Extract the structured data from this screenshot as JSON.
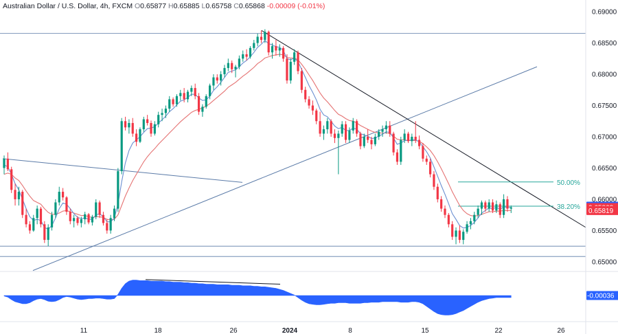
{
  "header": {
    "symbol": "Australian Dollar / U.S. Dollar, 4h, FXCM",
    "open_label": "O",
    "open": "0.65877",
    "high_label": "H",
    "high": "0.65885",
    "low_label": "L",
    "low": "0.65758",
    "close_label": "C",
    "close": "0.65868",
    "change": "-0.00009 (-0.01%)"
  },
  "price_badges": {
    "fib_38": {
      "text": "0.65889",
      "color": "#2962ff"
    },
    "close": {
      "text": "0.65868",
      "color": "#f23645"
    },
    "ma": {
      "text": "0.65819",
      "color": "#f23645"
    }
  },
  "oscillator_badge": {
    "text": "-0.00036",
    "color": "#2962ff"
  },
  "fib_labels": {
    "level_50": "50.00%",
    "level_382": "38.20%"
  },
  "colors": {
    "up_candle": "#089981",
    "down_candle": "#f23645",
    "ma_fast": "#6a8fd1",
    "ma_slow": "#e57373",
    "trendline": "#5b7ba8",
    "resistance_line": "#131722",
    "fib": "#26a69a",
    "oscillator": "#2962ff"
  },
  "chart_data": {
    "type": "candlestick",
    "title": "Australian Dollar / U.S. Dollar, 4h, FXCM",
    "ylim": [
      0.649,
      0.691
    ],
    "y_ticks": [
      "0.69000",
      "0.68500",
      "0.68000",
      "0.67500",
      "0.67000",
      "0.66500",
      "0.66000",
      "0.65500",
      "0.65000"
    ],
    "x_ticks": [
      "11",
      "18",
      "26",
      "2024",
      "8",
      "15",
      "22",
      "26"
    ],
    "bold_x_tick": "2024",
    "candles": [
      [
        0.665,
        0.667,
        0.664,
        0.6665
      ],
      [
        0.6665,
        0.6675,
        0.6645,
        0.6648
      ],
      [
        0.6648,
        0.6652,
        0.661,
        0.6615
      ],
      [
        0.6615,
        0.6625,
        0.659,
        0.66
      ],
      [
        0.66,
        0.662,
        0.659,
        0.6612
      ],
      [
        0.6612,
        0.6615,
        0.657,
        0.6575
      ],
      [
        0.6575,
        0.6585,
        0.6555,
        0.656
      ],
      [
        0.656,
        0.6565,
        0.6545,
        0.655
      ],
      [
        0.655,
        0.6575,
        0.6548,
        0.657
      ],
      [
        0.657,
        0.659,
        0.656,
        0.6585
      ],
      [
        0.6585,
        0.6588,
        0.6555,
        0.656
      ],
      [
        0.656,
        0.6565,
        0.653,
        0.6535
      ],
      [
        0.6535,
        0.656,
        0.6525,
        0.6555
      ],
      [
        0.6555,
        0.658,
        0.655,
        0.6575
      ],
      [
        0.6575,
        0.66,
        0.657,
        0.6595
      ],
      [
        0.6595,
        0.662,
        0.659,
        0.6612
      ],
      [
        0.6612,
        0.6618,
        0.6598,
        0.6603
      ],
      [
        0.6603,
        0.6605,
        0.6575,
        0.658
      ],
      [
        0.658,
        0.6585,
        0.656,
        0.6565
      ],
      [
        0.6565,
        0.6575,
        0.6555,
        0.657
      ],
      [
        0.657,
        0.6573,
        0.6558,
        0.6562
      ],
      [
        0.6562,
        0.6572,
        0.6555,
        0.6568
      ],
      [
        0.6568,
        0.658,
        0.656,
        0.6576
      ],
      [
        0.6576,
        0.6578,
        0.656,
        0.6563
      ],
      [
        0.6563,
        0.6575,
        0.6558,
        0.6572
      ],
      [
        0.6572,
        0.66,
        0.6568,
        0.6595
      ],
      [
        0.6595,
        0.6598,
        0.657,
        0.6575
      ],
      [
        0.6575,
        0.658,
        0.6558,
        0.6562
      ],
      [
        0.6562,
        0.6568,
        0.6545,
        0.655
      ],
      [
        0.655,
        0.6575,
        0.6545,
        0.657
      ],
      [
        0.657,
        0.659,
        0.6565,
        0.6585
      ],
      [
        0.6585,
        0.665,
        0.658,
        0.6645
      ],
      [
        0.6645,
        0.673,
        0.664,
        0.6725
      ],
      [
        0.6725,
        0.6732,
        0.671,
        0.6715
      ],
      [
        0.6715,
        0.6728,
        0.6705,
        0.6722
      ],
      [
        0.6722,
        0.673,
        0.67,
        0.6705
      ],
      [
        0.6705,
        0.6712,
        0.6685,
        0.6692
      ],
      [
        0.6692,
        0.6715,
        0.669,
        0.6712
      ],
      [
        0.6712,
        0.6732,
        0.6708,
        0.6728
      ],
      [
        0.6728,
        0.6735,
        0.6718,
        0.6722
      ],
      [
        0.6722,
        0.6726,
        0.67,
        0.6705
      ],
      [
        0.6705,
        0.6725,
        0.6702,
        0.672
      ],
      [
        0.672,
        0.674,
        0.6715,
        0.6735
      ],
      [
        0.6735,
        0.6745,
        0.6725,
        0.6738
      ],
      [
        0.6738,
        0.675,
        0.673,
        0.6745
      ],
      [
        0.6745,
        0.6765,
        0.674,
        0.676
      ],
      [
        0.676,
        0.6763,
        0.6748,
        0.6752
      ],
      [
        0.6752,
        0.6768,
        0.6748,
        0.6765
      ],
      [
        0.6765,
        0.6775,
        0.6758,
        0.677
      ],
      [
        0.677,
        0.6778,
        0.6755,
        0.676
      ],
      [
        0.676,
        0.6775,
        0.6755,
        0.6772
      ],
      [
        0.6772,
        0.6782,
        0.6765,
        0.6778
      ],
      [
        0.6778,
        0.6785,
        0.676,
        0.6765
      ],
      [
        0.6765,
        0.677,
        0.6735,
        0.674
      ],
      [
        0.674,
        0.6752,
        0.6732,
        0.6748
      ],
      [
        0.6748,
        0.6768,
        0.6745,
        0.6765
      ],
      [
        0.6765,
        0.6785,
        0.676,
        0.6782
      ],
      [
        0.6782,
        0.68,
        0.6775,
        0.6795
      ],
      [
        0.6795,
        0.68,
        0.6785,
        0.679
      ],
      [
        0.679,
        0.6805,
        0.6782,
        0.68
      ],
      [
        0.68,
        0.6815,
        0.6795,
        0.681
      ],
      [
        0.681,
        0.6825,
        0.6805,
        0.6818
      ],
      [
        0.6818,
        0.6822,
        0.6802,
        0.6808
      ],
      [
        0.6808,
        0.6815,
        0.6795,
        0.6812
      ],
      [
        0.6812,
        0.683,
        0.6808,
        0.6825
      ],
      [
        0.6825,
        0.6838,
        0.682,
        0.6832
      ],
      [
        0.6832,
        0.684,
        0.6822,
        0.6828
      ],
      [
        0.6828,
        0.6845,
        0.6825,
        0.6842
      ],
      [
        0.6842,
        0.6855,
        0.6838,
        0.685
      ],
      [
        0.685,
        0.6865,
        0.6845,
        0.686
      ],
      [
        0.686,
        0.687,
        0.685,
        0.6855
      ],
      [
        0.6855,
        0.6872,
        0.685,
        0.6868
      ],
      [
        0.6868,
        0.687,
        0.683,
        0.6835
      ],
      [
        0.6835,
        0.685,
        0.6825,
        0.6845
      ],
      [
        0.6845,
        0.6855,
        0.683,
        0.6838
      ],
      [
        0.6838,
        0.6848,
        0.6828,
        0.6842
      ],
      [
        0.6842,
        0.6845,
        0.682,
        0.6825
      ],
      [
        0.6825,
        0.6832,
        0.6785,
        0.679
      ],
      [
        0.679,
        0.6825,
        0.6785,
        0.682
      ],
      [
        0.682,
        0.684,
        0.6815,
        0.6835
      ],
      [
        0.6835,
        0.6838,
        0.68,
        0.6805
      ],
      [
        0.6805,
        0.681,
        0.677,
        0.6775
      ],
      [
        0.6775,
        0.678,
        0.6755,
        0.676
      ],
      [
        0.676,
        0.6765,
        0.6745,
        0.675
      ],
      [
        0.675,
        0.6758,
        0.6735,
        0.6742
      ],
      [
        0.6742,
        0.6745,
        0.672,
        0.6725
      ],
      [
        0.6725,
        0.674,
        0.67,
        0.6705
      ],
      [
        0.6705,
        0.6718,
        0.6695,
        0.6712
      ],
      [
        0.6712,
        0.673,
        0.6705,
        0.6725
      ],
      [
        0.6725,
        0.6728,
        0.67,
        0.6705
      ],
      [
        0.6705,
        0.6712,
        0.669,
        0.6698
      ],
      [
        0.6698,
        0.671,
        0.664,
        0.6705
      ],
      [
        0.6705,
        0.6725,
        0.67,
        0.672
      ],
      [
        0.672,
        0.6725,
        0.669,
        0.6695
      ],
      [
        0.6695,
        0.6715,
        0.669,
        0.671
      ],
      [
        0.671,
        0.673,
        0.6705,
        0.6725
      ],
      [
        0.6725,
        0.6728,
        0.67,
        0.6705
      ],
      [
        0.6705,
        0.6708,
        0.668,
        0.6685
      ],
      [
        0.6685,
        0.6705,
        0.6682,
        0.67
      ],
      [
        0.67,
        0.6712,
        0.669,
        0.6695
      ],
      [
        0.6695,
        0.67,
        0.668,
        0.6688
      ],
      [
        0.6688,
        0.6705,
        0.6685,
        0.67
      ],
      [
        0.67,
        0.6712,
        0.6695,
        0.6708
      ],
      [
        0.6708,
        0.6718,
        0.67,
        0.6712
      ],
      [
        0.6712,
        0.6725,
        0.6705,
        0.6718
      ],
      [
        0.6718,
        0.6725,
        0.67,
        0.6705
      ],
      [
        0.6705,
        0.6708,
        0.667,
        0.6675
      ],
      [
        0.6675,
        0.668,
        0.6655,
        0.666
      ],
      [
        0.666,
        0.67,
        0.6655,
        0.6695
      ],
      [
        0.6695,
        0.6712,
        0.669,
        0.6705
      ],
      [
        0.6705,
        0.6708,
        0.669,
        0.6693
      ],
      [
        0.6693,
        0.6705,
        0.6685,
        0.67
      ],
      [
        0.67,
        0.6725,
        0.669,
        0.6695
      ],
      [
        0.6695,
        0.6702,
        0.668,
        0.6685
      ],
      [
        0.6685,
        0.669,
        0.666,
        0.6665
      ],
      [
        0.6665,
        0.667,
        0.6655,
        0.666
      ],
      [
        0.666,
        0.6665,
        0.6635,
        0.664
      ],
      [
        0.664,
        0.6645,
        0.6615,
        0.662
      ],
      [
        0.662,
        0.6625,
        0.6595,
        0.66
      ],
      [
        0.66,
        0.6605,
        0.658,
        0.6585
      ],
      [
        0.6585,
        0.659,
        0.657,
        0.6575
      ],
      [
        0.6575,
        0.6578,
        0.6555,
        0.656
      ],
      [
        0.656,
        0.6565,
        0.6535,
        0.654
      ],
      [
        0.654,
        0.6555,
        0.6528,
        0.655
      ],
      [
        0.655,
        0.6558,
        0.653,
        0.6535
      ],
      [
        0.6535,
        0.6552,
        0.6528,
        0.6548
      ],
      [
        0.6548,
        0.6565,
        0.6545,
        0.656
      ],
      [
        0.656,
        0.657,
        0.6552,
        0.6565
      ],
      [
        0.6565,
        0.658,
        0.656,
        0.6575
      ],
      [
        0.6575,
        0.659,
        0.657,
        0.6585
      ],
      [
        0.6585,
        0.6598,
        0.6575,
        0.6595
      ],
      [
        0.6595,
        0.6598,
        0.658,
        0.6585
      ],
      [
        0.6585,
        0.66,
        0.658,
        0.6595
      ],
      [
        0.6595,
        0.66,
        0.6578,
        0.6582
      ],
      [
        0.6582,
        0.6598,
        0.6578,
        0.6592
      ],
      [
        0.6592,
        0.6595,
        0.657,
        0.6575
      ],
      [
        0.6575,
        0.6608,
        0.657,
        0.66
      ],
      [
        0.66,
        0.6605,
        0.658,
        0.6585
      ],
      [
        0.6585,
        0.659,
        0.6578,
        0.6587
      ]
    ],
    "ma_fast_values": [
      0.6655,
      0.6652,
      0.664,
      0.6625,
      0.6615,
      0.66,
      0.6585,
      0.6572,
      0.6566,
      0.6568,
      0.6566,
      0.6555,
      0.6552,
      0.6558,
      0.657,
      0.6585,
      0.6594,
      0.6592,
      0.6585,
      0.6577,
      0.6571,
      0.6569,
      0.657,
      0.6568,
      0.6568,
      0.6575,
      0.6577,
      0.6572,
      0.6564,
      0.6564,
      0.657,
      0.6592,
      0.6628,
      0.6658,
      0.6678,
      0.669,
      0.6695,
      0.67,
      0.6707,
      0.6713,
      0.6714,
      0.6716,
      0.6722,
      0.6727,
      0.6733,
      0.674,
      0.6745,
      0.6751,
      0.6757,
      0.6759,
      0.6763,
      0.6768,
      0.6768,
      0.6762,
      0.6758,
      0.6759,
      0.6765,
      0.6774,
      0.678,
      0.6787,
      0.6795,
      0.6803,
      0.6805,
      0.6807,
      0.6812,
      0.6818,
      0.6822,
      0.6828,
      0.6835,
      0.6843,
      0.6848,
      0.6854,
      0.6849,
      0.6847,
      0.6844,
      0.6843,
      0.6838,
      0.6825,
      0.6823,
      0.6826,
      0.682,
      0.6808,
      0.6795,
      0.6782,
      0.6771,
      0.6759,
      0.6744,
      0.6735,
      0.6732,
      0.6725,
      0.6717,
      0.6713,
      0.6715,
      0.671,
      0.671,
      0.6714,
      0.6712,
      0.6705,
      0.6703,
      0.6701,
      0.6697,
      0.6698,
      0.6701,
      0.6704,
      0.6708,
      0.6707,
      0.6698,
      0.6688,
      0.669,
      0.6694,
      0.6694,
      0.6695,
      0.6695,
      0.6692,
      0.6684,
      0.6676,
      0.6666,
      0.6652,
      0.6637,
      0.6622,
      0.6608,
      0.6593,
      0.6577,
      0.6568,
      0.6558,
      0.6554,
      0.6555,
      0.6558,
      0.6563,
      0.657,
      0.6578,
      0.6582,
      0.6586,
      0.6585,
      0.6587,
      0.6584,
      0.6588,
      0.6587,
      0.6587
    ],
    "ma_slow_values": [
      0.664,
      0.6642,
      0.664,
      0.6634,
      0.663,
      0.6622,
      0.6613,
      0.6605,
      0.6598,
      0.6595,
      0.6592,
      0.6585,
      0.6579,
      0.6576,
      0.6576,
      0.6578,
      0.6581,
      0.6582,
      0.658,
      0.6578,
      0.6576,
      0.6574,
      0.6574,
      0.6572,
      0.6571,
      0.6572,
      0.6572,
      0.6571,
      0.6568,
      0.6567,
      0.6568,
      0.6575,
      0.659,
      0.6605,
      0.6618,
      0.663,
      0.664,
      0.665,
      0.666,
      0.6668,
      0.6675,
      0.6681,
      0.6688,
      0.6694,
      0.67,
      0.6706,
      0.6712,
      0.6718,
      0.6724,
      0.6729,
      0.6734,
      0.6739,
      0.6742,
      0.6744,
      0.6746,
      0.6749,
      0.6753,
      0.6758,
      0.6763,
      0.6768,
      0.6773,
      0.6779,
      0.6783,
      0.6787,
      0.6792,
      0.6797,
      0.6801,
      0.6806,
      0.6811,
      0.6817,
      0.6821,
      0.6826,
      0.6828,
      0.683,
      0.6831,
      0.6832,
      0.6831,
      0.6827,
      0.6826,
      0.6826,
      0.6823,
      0.6816,
      0.6808,
      0.6799,
      0.679,
      0.678,
      0.677,
      0.6762,
      0.6756,
      0.6749,
      0.6742,
      0.6736,
      0.6733,
      0.6729,
      0.6726,
      0.6725,
      0.6722,
      0.6718,
      0.6715,
      0.6712,
      0.6709,
      0.6707,
      0.6706,
      0.6706,
      0.6706,
      0.6705,
      0.6701,
      0.6696,
      0.6695,
      0.6695,
      0.6694,
      0.6694,
      0.6694,
      0.6693,
      0.6689,
      0.6684,
      0.6678,
      0.667,
      0.666,
      0.6649,
      0.6637,
      0.6625,
      0.6612,
      0.6601,
      0.659,
      0.6582,
      0.6577,
      0.6574,
      0.6573,
      0.6574,
      0.6576,
      0.6578,
      0.658,
      0.658,
      0.6581,
      0.6581,
      0.6582,
      0.6582,
      0.6582
    ],
    "oscillator_values": [
      -0.0001,
      -0.0003,
      -0.0008,
      -0.0012,
      -0.0014,
      -0.0016,
      -0.0016,
      -0.0014,
      -0.001,
      -0.0007,
      -0.0006,
      -0.0008,
      -0.0011,
      -0.0012,
      -0.0011,
      -0.0008,
      -0.0004,
      -0.0002,
      -0.0003,
      -0.0005,
      -0.0007,
      -0.0008,
      -0.0007,
      -0.0006,
      -0.0006,
      -0.0005,
      -0.0005,
      -0.0006,
      -0.0007,
      -0.0007,
      -0.0006,
      0.0002,
      0.0014,
      0.0023,
      0.0028,
      0.003,
      0.003,
      0.0029,
      0.0029,
      0.0029,
      0.0028,
      0.0028,
      0.0028,
      0.0028,
      0.0027,
      0.0027,
      0.0026,
      0.0026,
      0.0026,
      0.0025,
      0.0025,
      0.0024,
      0.0024,
      0.0023,
      0.0023,
      0.0022,
      0.0022,
      0.0022,
      0.0021,
      0.0021,
      0.0021,
      0.0021,
      0.002,
      0.002,
      0.002,
      0.0019,
      0.0019,
      0.0019,
      0.0018,
      0.0018,
      0.0017,
      0.0017,
      0.0016,
      0.0015,
      0.0014,
      0.0012,
      0.001,
      0.0007,
      0.0004,
      0.0001,
      -0.0004,
      -0.0009,
      -0.0013,
      -0.0016,
      -0.0017,
      -0.0018,
      -0.0018,
      -0.0017,
      -0.0016,
      -0.0015,
      -0.0015,
      -0.0014,
      -0.0014,
      -0.0014,
      -0.0015,
      -0.0015,
      -0.0015,
      -0.0015,
      -0.0014,
      -0.0014,
      -0.0013,
      -0.0013,
      -0.0013,
      -0.0012,
      -0.0012,
      -0.0012,
      -0.0012,
      -0.0012,
      -0.0013,
      -0.0013,
      -0.0013,
      -0.0012,
      -0.0012,
      -0.0013,
      -0.0016,
      -0.0021,
      -0.0026,
      -0.0031,
      -0.0035,
      -0.0037,
      -0.0038,
      -0.0038,
      -0.0037,
      -0.0035,
      -0.0032,
      -0.0029,
      -0.0025,
      -0.0021,
      -0.0017,
      -0.0013,
      -0.001,
      -0.0008,
      -0.0006,
      -0.0005,
      -0.0004,
      -0.0004,
      -0.0004,
      -0.0004,
      -0.0004
    ],
    "ascending_trendline_prices": [
      0.6486,
      0.6812
    ],
    "descending_resistance_prices": [
      0.687,
      0.6555
    ],
    "early_trendline_prices": [
      0.6665,
      0.6627
    ],
    "support_levels": [
      0.6525,
      0.65085
    ],
    "resistance_level": 0.68655,
    "fib_levels": {
      "level_50": 0.66277,
      "level_382": 0.65889
    },
    "divergence_line": [
      0.0031,
      0.0022
    ]
  }
}
